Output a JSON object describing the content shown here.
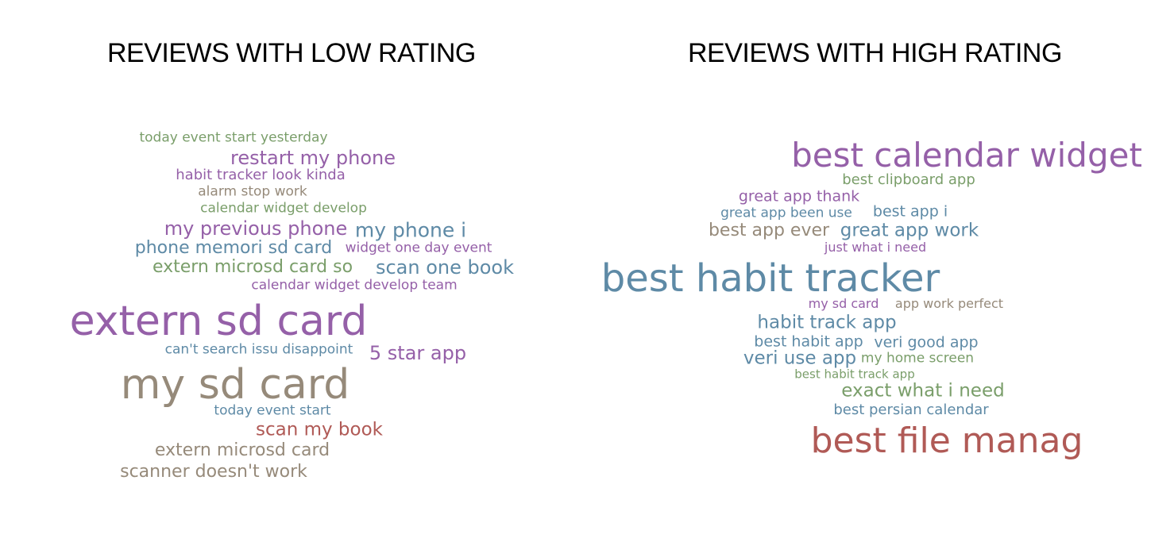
{
  "palette": {
    "green": "#7a9e6a",
    "purple": "#9560a8",
    "gray": "#968a7a",
    "blue": "#5e8aa6",
    "red": "#b05a56"
  },
  "low": {
    "title": "REVIEWS WITH LOW RATING",
    "words": [
      {
        "text": "today event start yesterday",
        "color": "green"
      },
      {
        "text": "restart my phone",
        "color": "purple"
      },
      {
        "text": "habit tracker look kinda",
        "color": "purple"
      },
      {
        "text": "alarm stop work",
        "color": "gray"
      },
      {
        "text": "calendar widget develop",
        "color": "green"
      },
      {
        "text": "my previous phone",
        "color": "purple"
      },
      {
        "text": "my phone i",
        "color": "blue"
      },
      {
        "text": "phone memori sd card",
        "color": "blue"
      },
      {
        "text": "widget one day event",
        "color": "purple"
      },
      {
        "text": "extern microsd card so",
        "color": "green"
      },
      {
        "text": "scan one book",
        "color": "blue"
      },
      {
        "text": "calendar widget develop team",
        "color": "purple"
      },
      {
        "text": "extern sd card",
        "color": "purple"
      },
      {
        "text": "can't search issu disappoint",
        "color": "blue"
      },
      {
        "text": "5 star app",
        "color": "purple"
      },
      {
        "text": "my sd card",
        "color": "gray"
      },
      {
        "text": "today event start",
        "color": "blue"
      },
      {
        "text": "scan my book",
        "color": "red"
      },
      {
        "text": "extern microsd card",
        "color": "gray"
      },
      {
        "text": "scanner doesn't work",
        "color": "gray"
      }
    ]
  },
  "high": {
    "title": "REVIEWS WITH HIGH RATING",
    "words": [
      {
        "text": "best calendar widget",
        "color": "purple"
      },
      {
        "text": "best clipboard app",
        "color": "green"
      },
      {
        "text": "great app thank",
        "color": "purple"
      },
      {
        "text": "great app been use",
        "color": "blue"
      },
      {
        "text": "best app i",
        "color": "blue"
      },
      {
        "text": "best app ever",
        "color": "gray"
      },
      {
        "text": "great app work",
        "color": "blue"
      },
      {
        "text": "just what i need",
        "color": "purple"
      },
      {
        "text": "best habit tracker",
        "color": "blue"
      },
      {
        "text": "my sd card",
        "color": "purple"
      },
      {
        "text": "app work perfect",
        "color": "gray"
      },
      {
        "text": "habit track app",
        "color": "blue"
      },
      {
        "text": "best habit app",
        "color": "blue"
      },
      {
        "text": "veri good app",
        "color": "blue"
      },
      {
        "text": "veri use app",
        "color": "blue"
      },
      {
        "text": "my home screen",
        "color": "green"
      },
      {
        "text": "best habit track app",
        "color": "green"
      },
      {
        "text": "exact what i need",
        "color": "green"
      },
      {
        "text": "best persian calendar",
        "color": "blue"
      },
      {
        "text": "best file manag",
        "color": "red"
      }
    ]
  }
}
